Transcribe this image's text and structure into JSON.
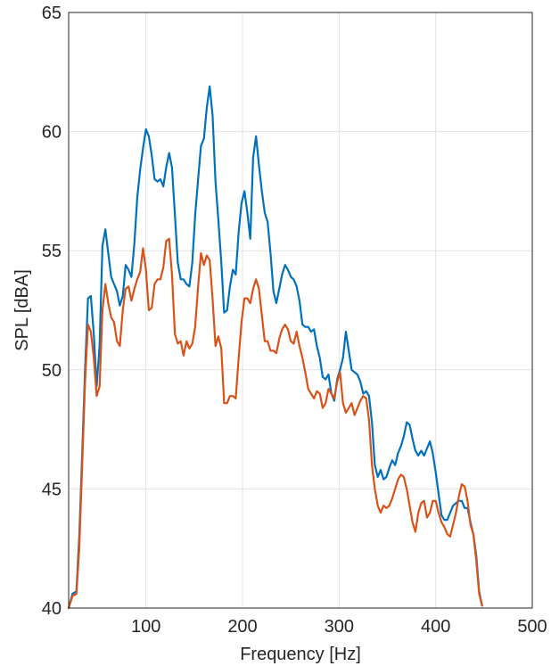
{
  "chart_data": {
    "type": "line",
    "title": "",
    "xlabel": "Frequency [Hz]",
    "ylabel": "SPL [dBA]",
    "xlim": [
      20,
      500
    ],
    "ylim": [
      40,
      65
    ],
    "xticks": [
      100,
      200,
      300,
      400,
      500
    ],
    "yticks": [
      40,
      45,
      50,
      55,
      60,
      65
    ],
    "grid": true,
    "legend": "none",
    "series": [
      {
        "color": "#0072BD",
        "points": [
          [
            20,
            40.0
          ],
          [
            24,
            40.6
          ],
          [
            28,
            40.7
          ],
          [
            31,
            43.0
          ],
          [
            34,
            46.5
          ],
          [
            37,
            50.0
          ],
          [
            40,
            53.0
          ],
          [
            43,
            53.1
          ],
          [
            46,
            51.5
          ],
          [
            49,
            49.3
          ],
          [
            52,
            51.0
          ],
          [
            55,
            55.2
          ],
          [
            58,
            55.9
          ],
          [
            61,
            54.9
          ],
          [
            64,
            53.9
          ],
          [
            67,
            53.6
          ],
          [
            70,
            53.3
          ],
          [
            73,
            52.7
          ],
          [
            76,
            53.1
          ],
          [
            79,
            54.4
          ],
          [
            82,
            54.2
          ],
          [
            85,
            53.9
          ],
          [
            88,
            55.3
          ],
          [
            91,
            57.2
          ],
          [
            94,
            58.4
          ],
          [
            97,
            59.3
          ],
          [
            100,
            60.1
          ],
          [
            103,
            59.8
          ],
          [
            106,
            59.0
          ],
          [
            109,
            58.0
          ],
          [
            112,
            57.9
          ],
          [
            115,
            58.0
          ],
          [
            118,
            57.7
          ],
          [
            121,
            58.5
          ],
          [
            124,
            59.1
          ],
          [
            127,
            58.5
          ],
          [
            130,
            56.5
          ],
          [
            133,
            54.5
          ],
          [
            136,
            53.8
          ],
          [
            139,
            53.8
          ],
          [
            142,
            53.6
          ],
          [
            145,
            53.5
          ],
          [
            148,
            54.5
          ],
          [
            151,
            56.5
          ],
          [
            154,
            58.0
          ],
          [
            157,
            59.4
          ],
          [
            160,
            59.7
          ],
          [
            163,
            61.0
          ],
          [
            166,
            61.9
          ],
          [
            169,
            60.7
          ],
          [
            172,
            57.9
          ],
          [
            175,
            56.3
          ],
          [
            178,
            54.5
          ],
          [
            181,
            52.4
          ],
          [
            184,
            52.5
          ],
          [
            187,
            53.5
          ],
          [
            190,
            54.2
          ],
          [
            193,
            54.0
          ],
          [
            196,
            55.8
          ],
          [
            199,
            57.0
          ],
          [
            202,
            57.5
          ],
          [
            205,
            56.6
          ],
          [
            208,
            55.5
          ],
          [
            211,
            58.9
          ],
          [
            214,
            59.8
          ],
          [
            217,
            58.6
          ],
          [
            220,
            57.5
          ],
          [
            223,
            56.6
          ],
          [
            226,
            56.2
          ],
          [
            229,
            54.9
          ],
          [
            232,
            53.3
          ],
          [
            235,
            52.8
          ],
          [
            238,
            53.4
          ],
          [
            241,
            54.0
          ],
          [
            244,
            54.4
          ],
          [
            247,
            54.2
          ],
          [
            250,
            53.9
          ],
          [
            253,
            53.8
          ],
          [
            256,
            53.5
          ],
          [
            259,
            52.9
          ],
          [
            262,
            51.9
          ],
          [
            265,
            51.8
          ],
          [
            268,
            51.8
          ],
          [
            271,
            51.6
          ],
          [
            274,
            51.7
          ],
          [
            277,
            51.0
          ],
          [
            280,
            50.5
          ],
          [
            283,
            49.7
          ],
          [
            286,
            49.6
          ],
          [
            289,
            49.8
          ],
          [
            292,
            49.0
          ],
          [
            295,
            48.7
          ],
          [
            298,
            49.6
          ],
          [
            301,
            50.0
          ],
          [
            304,
            50.5
          ],
          [
            307,
            51.6
          ],
          [
            310,
            50.8
          ],
          [
            313,
            50.0
          ],
          [
            316,
            49.9
          ],
          [
            319,
            49.8
          ],
          [
            322,
            49.5
          ],
          [
            325,
            49.0
          ],
          [
            328,
            49.1
          ],
          [
            331,
            48.9
          ],
          [
            334,
            47.8
          ],
          [
            337,
            46.0
          ],
          [
            340,
            45.5
          ],
          [
            343,
            45.8
          ],
          [
            346,
            45.4
          ],
          [
            349,
            45.5
          ],
          [
            352,
            45.9
          ],
          [
            355,
            46.2
          ],
          [
            358,
            46.0
          ],
          [
            361,
            46.5
          ],
          [
            364,
            46.8
          ],
          [
            367,
            47.2
          ],
          [
            370,
            47.8
          ],
          [
            373,
            47.7
          ],
          [
            376,
            47.1
          ],
          [
            379,
            46.6
          ],
          [
            382,
            46.4
          ],
          [
            385,
            46.6
          ],
          [
            388,
            46.4
          ],
          [
            391,
            46.7
          ],
          [
            394,
            47.0
          ],
          [
            397,
            46.5
          ],
          [
            400,
            45.7
          ],
          [
            403,
            44.8
          ],
          [
            406,
            43.9
          ],
          [
            409,
            43.7
          ],
          [
            412,
            43.7
          ],
          [
            415,
            44.0
          ],
          [
            418,
            44.3
          ],
          [
            421,
            44.4
          ],
          [
            424,
            44.5
          ],
          [
            427,
            44.5
          ],
          [
            430,
            44.2
          ],
          [
            433,
            44.2
          ],
          [
            436,
            43.6
          ],
          [
            439,
            43.1
          ],
          [
            442,
            42.2
          ],
          [
            445,
            40.7
          ],
          [
            448,
            40.1
          ]
        ]
      },
      {
        "color": "#D95319",
        "points": [
          [
            20,
            40.0
          ],
          [
            24,
            40.5
          ],
          [
            28,
            40.6
          ],
          [
            31,
            42.5
          ],
          [
            34,
            46.0
          ],
          [
            37,
            49.5
          ],
          [
            40,
            51.9
          ],
          [
            43,
            51.6
          ],
          [
            46,
            50.5
          ],
          [
            49,
            48.9
          ],
          [
            52,
            49.3
          ],
          [
            55,
            52.5
          ],
          [
            58,
            53.6
          ],
          [
            61,
            52.8
          ],
          [
            64,
            52.2
          ],
          [
            67,
            52.0
          ],
          [
            70,
            51.2
          ],
          [
            73,
            51.0
          ],
          [
            76,
            52.5
          ],
          [
            79,
            53.4
          ],
          [
            82,
            53.5
          ],
          [
            85,
            52.9
          ],
          [
            88,
            53.4
          ],
          [
            91,
            53.8
          ],
          [
            94,
            54.1
          ],
          [
            97,
            55.1
          ],
          [
            100,
            54.2
          ],
          [
            103,
            52.5
          ],
          [
            106,
            52.6
          ],
          [
            109,
            53.6
          ],
          [
            112,
            53.8
          ],
          [
            115,
            53.8
          ],
          [
            118,
            54.3
          ],
          [
            121,
            55.4
          ],
          [
            124,
            55.5
          ],
          [
            127,
            54.0
          ],
          [
            130,
            51.5
          ],
          [
            133,
            51.1
          ],
          [
            136,
            51.2
          ],
          [
            139,
            50.6
          ],
          [
            142,
            51.2
          ],
          [
            145,
            50.9
          ],
          [
            148,
            51.1
          ],
          [
            151,
            51.8
          ],
          [
            154,
            53.5
          ],
          [
            157,
            54.9
          ],
          [
            160,
            54.4
          ],
          [
            163,
            54.8
          ],
          [
            166,
            54.6
          ],
          [
            169,
            53.0
          ],
          [
            172,
            51.0
          ],
          [
            175,
            51.4
          ],
          [
            178,
            50.9
          ],
          [
            181,
            48.6
          ],
          [
            184,
            48.6
          ],
          [
            187,
            48.9
          ],
          [
            190,
            48.9
          ],
          [
            193,
            48.8
          ],
          [
            196,
            50.5
          ],
          [
            199,
            52.0
          ],
          [
            202,
            53.0
          ],
          [
            205,
            53.0
          ],
          [
            208,
            52.8
          ],
          [
            211,
            53.4
          ],
          [
            214,
            53.8
          ],
          [
            217,
            53.4
          ],
          [
            220,
            52.3
          ],
          [
            223,
            51.2
          ],
          [
            226,
            51.2
          ],
          [
            229,
            50.8
          ],
          [
            232,
            50.8
          ],
          [
            235,
            50.7
          ],
          [
            238,
            51.3
          ],
          [
            241,
            51.7
          ],
          [
            244,
            51.9
          ],
          [
            247,
            51.7
          ],
          [
            250,
            51.2
          ],
          [
            253,
            51.1
          ],
          [
            256,
            51.6
          ],
          [
            259,
            51.0
          ],
          [
            262,
            50.5
          ],
          [
            265,
            49.9
          ],
          [
            268,
            49.2
          ],
          [
            271,
            49.0
          ],
          [
            274,
            48.8
          ],
          [
            277,
            49.1
          ],
          [
            280,
            49.0
          ],
          [
            283,
            48.4
          ],
          [
            286,
            48.6
          ],
          [
            289,
            49.2
          ],
          [
            292,
            49.0
          ],
          [
            295,
            48.8
          ],
          [
            298,
            49.5
          ],
          [
            301,
            49.9
          ],
          [
            304,
            48.6
          ],
          [
            307,
            48.2
          ],
          [
            310,
            48.4
          ],
          [
            313,
            48.6
          ],
          [
            316,
            48.1
          ],
          [
            319,
            48.4
          ],
          [
            322,
            48.7
          ],
          [
            325,
            48.9
          ],
          [
            328,
            48.8
          ],
          [
            331,
            47.9
          ],
          [
            334,
            46.0
          ],
          [
            337,
            45.0
          ],
          [
            340,
            44.3
          ],
          [
            343,
            44.0
          ],
          [
            346,
            44.3
          ],
          [
            349,
            44.2
          ],
          [
            352,
            44.3
          ],
          [
            355,
            44.6
          ],
          [
            358,
            45.0
          ],
          [
            361,
            45.4
          ],
          [
            364,
            45.6
          ],
          [
            367,
            45.5
          ],
          [
            370,
            45.0
          ],
          [
            373,
            44.3
          ],
          [
            376,
            43.6
          ],
          [
            379,
            43.2
          ],
          [
            382,
            44.0
          ],
          [
            385,
            44.4
          ],
          [
            388,
            44.5
          ],
          [
            391,
            43.8
          ],
          [
            394,
            44.0
          ],
          [
            397,
            44.5
          ],
          [
            400,
            44.5
          ],
          [
            403,
            44.0
          ],
          [
            406,
            43.6
          ],
          [
            409,
            43.4
          ],
          [
            412,
            43.1
          ],
          [
            415,
            43.0
          ],
          [
            418,
            43.5
          ],
          [
            421,
            44.0
          ],
          [
            424,
            44.7
          ],
          [
            427,
            45.2
          ],
          [
            430,
            45.1
          ],
          [
            433,
            44.5
          ],
          [
            436,
            43.5
          ],
          [
            439,
            43.1
          ],
          [
            442,
            42.0
          ],
          [
            445,
            40.6
          ],
          [
            448,
            40.1
          ]
        ]
      }
    ]
  }
}
